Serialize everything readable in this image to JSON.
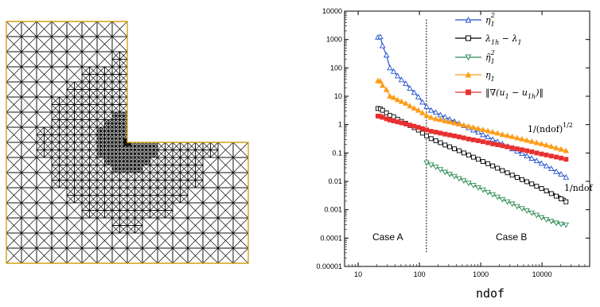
{
  "chart_data": [
    {
      "type": "mesh",
      "colors": {
        "boundary": "#d4a017",
        "edges": "#000000"
      }
    },
    {
      "type": "line",
      "xlabel": "ndof",
      "ylabel": "",
      "xscale": "log",
      "yscale": "log",
      "xlim": [
        6,
        60000
      ],
      "ylim": [
        1e-05,
        10000
      ],
      "x_ticks": [
        "10",
        "100",
        "1000",
        "10000"
      ],
      "y_ticks": [
        "0.00001",
        "0.0001",
        "0.001",
        "0.01",
        "0.1",
        "1",
        "10",
        "100",
        "1000",
        "10000"
      ],
      "legend_position": "top-right",
      "series": [
        {
          "name": "η_1^2",
          "color": "#2050d0",
          "marker": "triangle-up-open",
          "x": [
            21,
            23,
            25,
            29,
            33,
            38,
            44,
            51,
            60,
            70,
            82,
            96,
            112,
            131,
            155,
            185,
            220,
            262,
            312,
            372,
            444,
            530,
            635,
            760,
            910,
            1090,
            1310,
            1570,
            1880,
            2260,
            2720,
            3270,
            3930,
            4720,
            5670,
            6810,
            8180,
            9830,
            11800,
            14200,
            17100,
            20500,
            24700
          ],
          "y": [
            1200,
            1250,
            600,
            280,
            100,
            75,
            52,
            38,
            28,
            19,
            13.5,
            9.5,
            6.2,
            4.3,
            3.2,
            2.7,
            2.2,
            1.85,
            1.55,
            1.3,
            1.1,
            0.92,
            0.78,
            0.64,
            0.54,
            0.44,
            0.37,
            0.3,
            0.25,
            0.21,
            0.17,
            0.14,
            0.115,
            0.096,
            0.079,
            0.065,
            0.053,
            0.043,
            0.035,
            0.028,
            0.022,
            0.018,
            0.014
          ]
        },
        {
          "name": "λ_{1h} − λ_1",
          "color": "#000000",
          "marker": "square-open",
          "x": [
            21,
            23,
            25,
            29,
            33,
            38,
            44,
            51,
            60,
            70,
            82,
            96,
            112,
            131,
            155,
            185,
            220,
            262,
            312,
            372,
            444,
            530,
            635,
            760,
            910,
            1090,
            1310,
            1570,
            1880,
            2260,
            2720,
            3270,
            3930,
            4720,
            5670,
            6810,
            8180,
            9830,
            11800,
            14200,
            17100,
            20500,
            24700
          ],
          "y": [
            3.7,
            3.6,
            3.2,
            2.6,
            2.1,
            1.9,
            1.55,
            1.3,
            1.1,
            0.93,
            0.78,
            0.64,
            0.5,
            0.4,
            0.32,
            0.27,
            0.23,
            0.19,
            0.165,
            0.14,
            0.12,
            0.1,
            0.085,
            0.071,
            0.06,
            0.05,
            0.042,
            0.035,
            0.029,
            0.024,
            0.02,
            0.0165,
            0.0138,
            0.0115,
            0.0097,
            0.0081,
            0.0067,
            0.0056,
            0.0046,
            0.0037,
            0.003,
            0.0024,
            0.0019
          ]
        },
        {
          "name": "η̃_1^2",
          "color": "#2e8b57",
          "marker": "triangle-down-open",
          "x": [
            131,
            155,
            185,
            220,
            262,
            312,
            372,
            444,
            530,
            635,
            760,
            910,
            1090,
            1310,
            1570,
            1880,
            2260,
            2720,
            3270,
            3930,
            4720,
            5670,
            6810,
            8180,
            9830,
            11800,
            14200,
            17100,
            20500,
            24700
          ],
          "y": [
            0.045,
            0.038,
            0.032,
            0.026,
            0.021,
            0.018,
            0.015,
            0.0125,
            0.0105,
            0.0087,
            0.0072,
            0.006,
            0.005,
            0.0041,
            0.0034,
            0.0028,
            0.0023,
            0.0019,
            0.0016,
            0.0013,
            0.0011,
            0.00092,
            0.00077,
            0.00064,
            0.00053,
            0.00045,
            0.00039,
            0.00034,
            0.00031,
            0.00029
          ]
        },
        {
          "name": "η_1",
          "color": "#ff9c18",
          "marker": "triangle-up-filled",
          "x": [
            21,
            23,
            25,
            29,
            33,
            38,
            44,
            51,
            60,
            70,
            82,
            96,
            112,
            131,
            155,
            185,
            220,
            262,
            312,
            372,
            444,
            530,
            635,
            760,
            910,
            1090,
            1310,
            1570,
            1880,
            2260,
            2720,
            3270,
            3930,
            4720,
            5670,
            6810,
            8180,
            9830,
            11800,
            14200,
            17100,
            20500,
            24700
          ],
          "y": [
            35,
            34,
            24,
            17,
            10,
            9,
            7.5,
            6.5,
            5.6,
            4.5,
            3.8,
            3.2,
            2.6,
            2.1,
            1.8,
            1.6,
            1.5,
            1.35,
            1.25,
            1.15,
            1.05,
            0.96,
            0.88,
            0.8,
            0.73,
            0.66,
            0.6,
            0.55,
            0.5,
            0.45,
            0.41,
            0.375,
            0.34,
            0.31,
            0.28,
            0.255,
            0.23,
            0.21,
            0.19,
            0.17,
            0.15,
            0.135,
            0.12
          ]
        },
        {
          "name": "‖∇(u_1 − u_{1h})‖",
          "color": "#e83030",
          "marker": "square-filled",
          "x": [
            21,
            23,
            25,
            29,
            33,
            38,
            44,
            51,
            60,
            70,
            82,
            96,
            112,
            131,
            155,
            185,
            220,
            262,
            312,
            372,
            444,
            530,
            635,
            760,
            910,
            1090,
            1310,
            1570,
            1880,
            2260,
            2720,
            3270,
            3930,
            4720,
            5670,
            6810,
            8180,
            9830,
            11800,
            14200,
            17100,
            20500,
            24700
          ],
          "y": [
            2,
            1.95,
            1.8,
            1.6,
            1.45,
            1.35,
            1.25,
            1.15,
            1.05,
            0.96,
            0.88,
            0.8,
            0.72,
            0.65,
            0.58,
            0.54,
            0.5,
            0.46,
            0.43,
            0.4,
            0.37,
            0.34,
            0.31,
            0.29,
            0.27,
            0.25,
            0.23,
            0.21,
            0.195,
            0.18,
            0.165,
            0.152,
            0.14,
            0.13,
            0.12,
            0.11,
            0.1,
            0.092,
            0.085,
            0.078,
            0.072,
            0.066,
            0.06
          ]
        }
      ],
      "reference_lines": [
        {
          "label": "1/(ndof)^{1/2}",
          "color": "#ff9c18",
          "x": [
            3000,
            24700
          ],
          "y": [
            0.38,
            0.13
          ]
        },
        {
          "label": "1/ndof",
          "color": "#000000",
          "x": [
            2500,
            24700
          ],
          "y": [
            0.023,
            0.0024
          ]
        }
      ],
      "divider_x": 130,
      "annotations": [
        "Case A",
        "Case B"
      ]
    }
  ],
  "legend": {
    "e1": {
      "base": "η",
      "sub": "1",
      "sup": "2"
    },
    "e2": {
      "lam": "λ",
      "sub1": "1h",
      "minus": " − ",
      "lam2": "λ",
      "sub2": "1"
    },
    "e3": {
      "base": "η̃",
      "sub": "1",
      "sup": "2"
    },
    "e4": {
      "base": "η",
      "sub": "1"
    },
    "e5": {
      "pre": "‖∇(u",
      "sub1": "1",
      "mid": " − u",
      "sub2": "1h",
      "post": ")‖"
    }
  },
  "ref_labels": {
    "sqrt": {
      "base": "1/(ndof)",
      "sup": "1/2"
    },
    "lin": {
      "base": "1/ndof"
    }
  },
  "case_labels": {
    "a": "Case A",
    "b": "Case B"
  },
  "axis": {
    "xlabel": "ndof"
  }
}
